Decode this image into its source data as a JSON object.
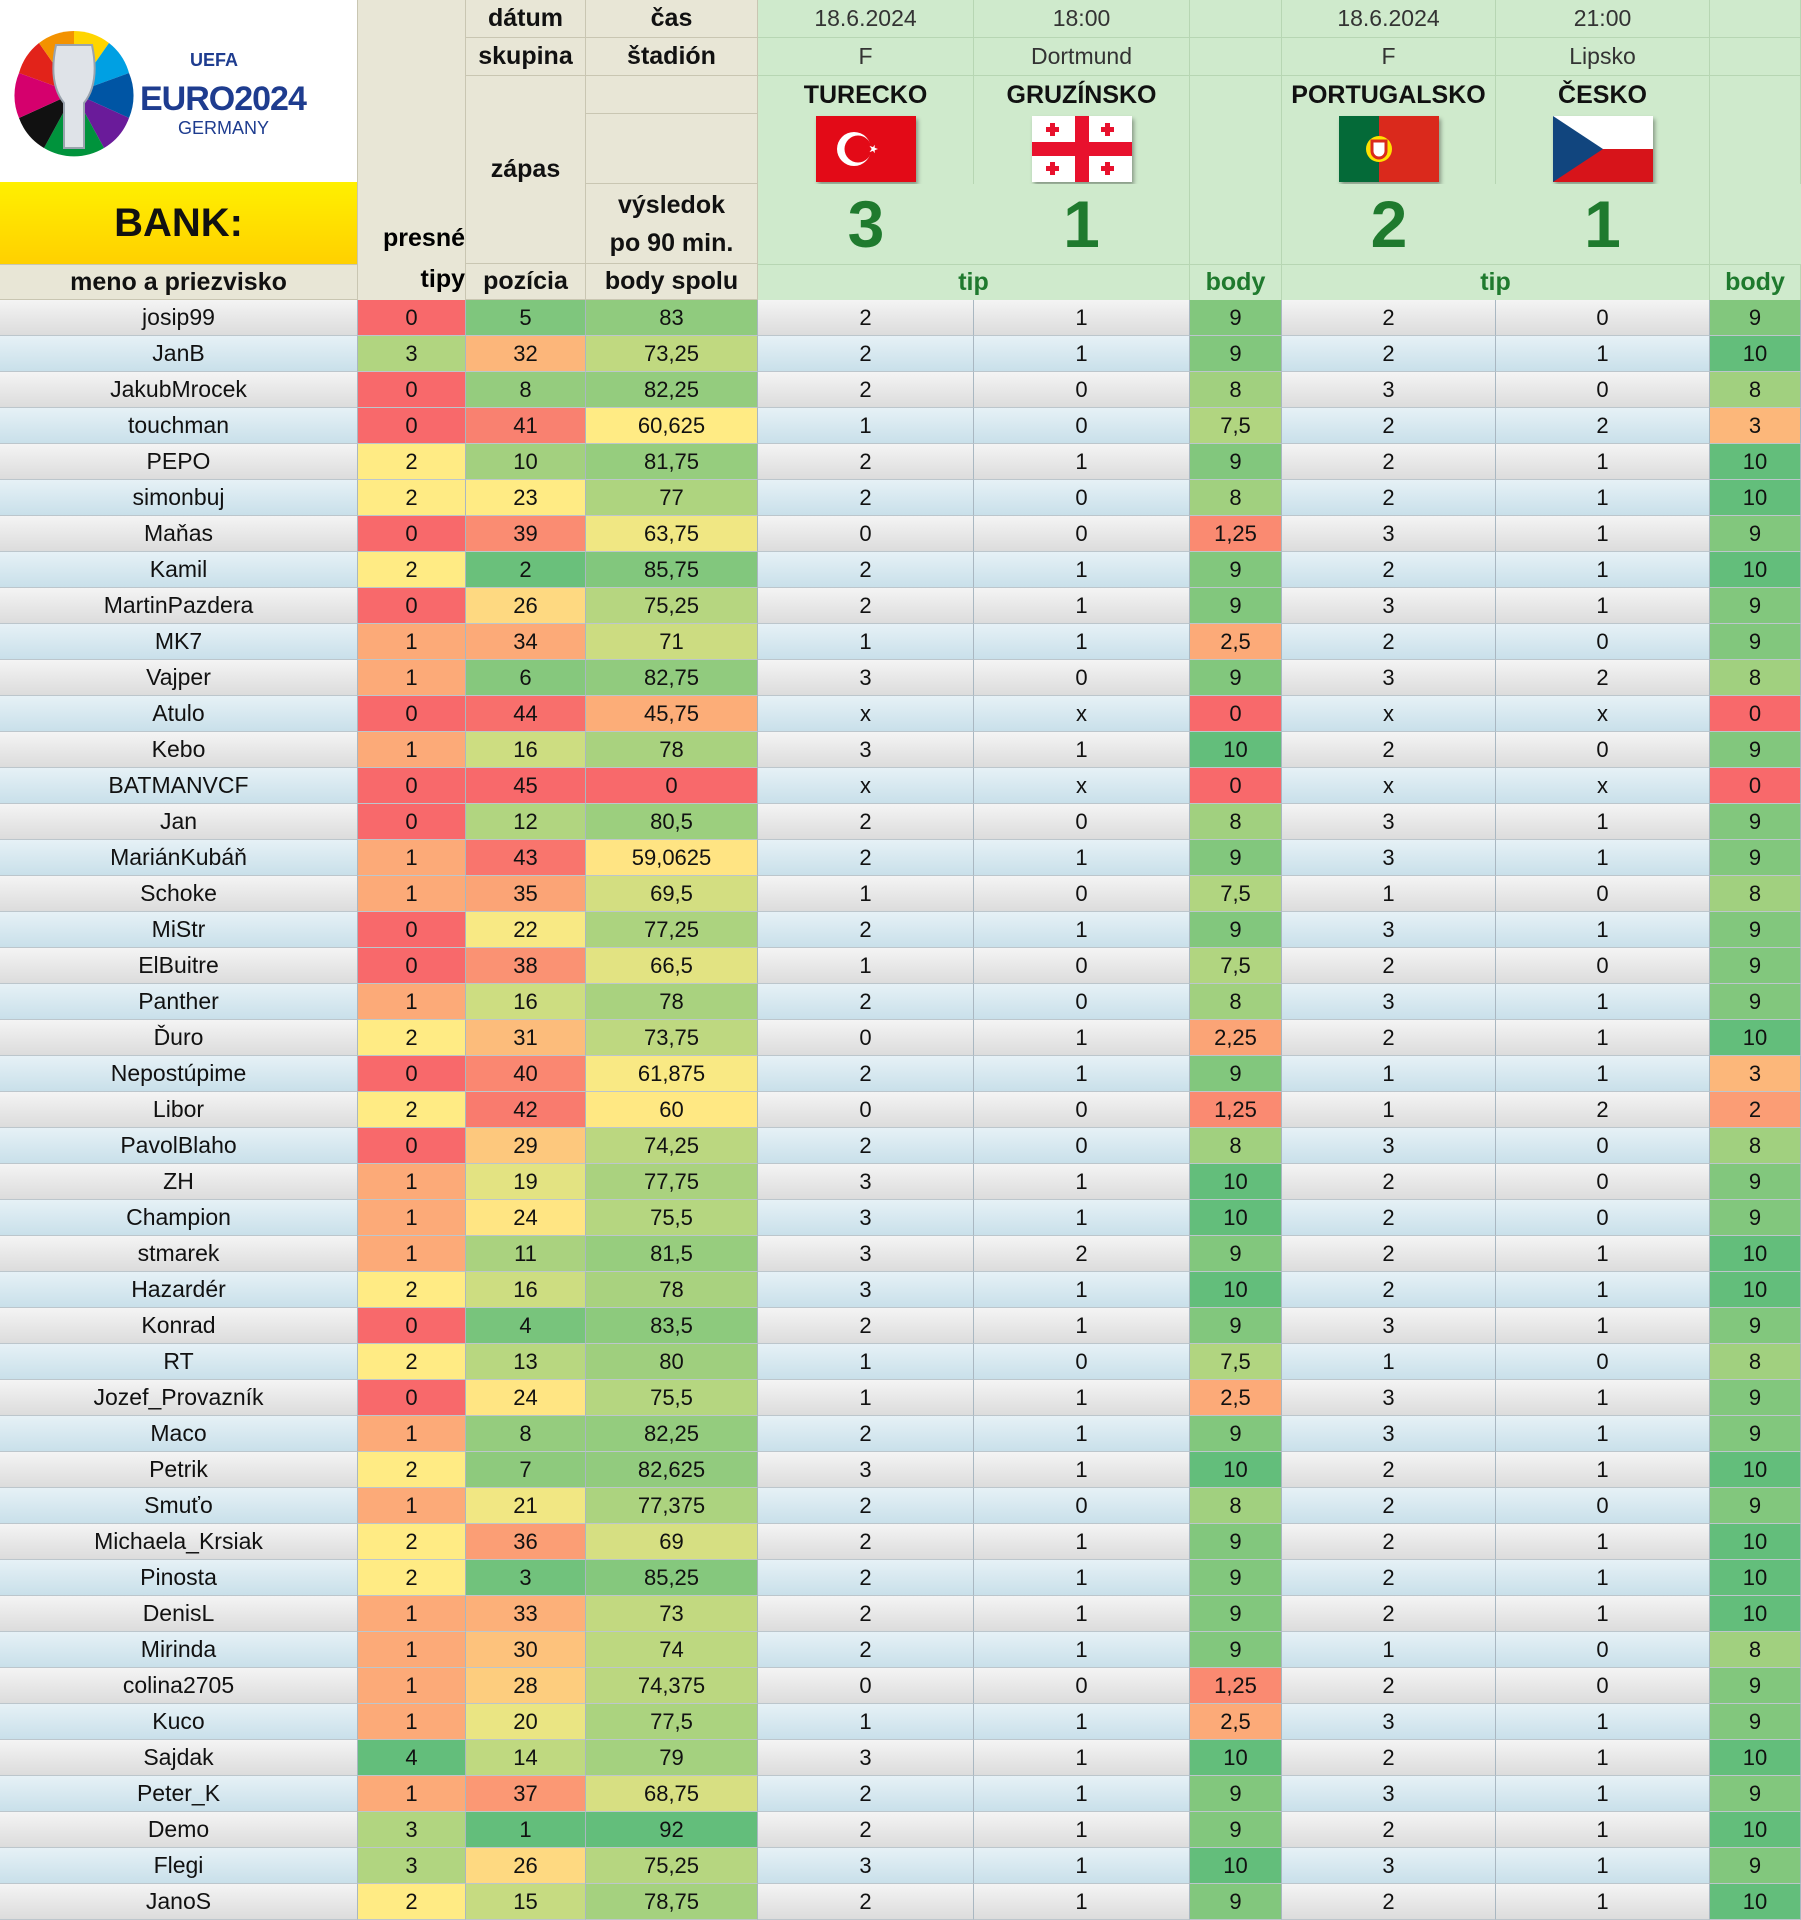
{
  "header": {
    "logo": {
      "top": "UEFA",
      "main": "EURO2024",
      "sub": "GERMANY"
    },
    "bank_label": "BANK:",
    "labels": {
      "datum": "dátum",
      "cas": "čas",
      "skupina": "skupina",
      "stadion": "štadión",
      "zapas": "zápas",
      "vysledok_line1": "výsledok",
      "vysledok_line2": "po 90 min.",
      "presne_line1": "presné",
      "presne_line2": "tipy",
      "meno": "meno a priezvisko",
      "pozicia": "pozícia",
      "body_spolu": "body spolu"
    },
    "matches": [
      {
        "date": "18.6.2024",
        "time": "18:00",
        "group": "F",
        "stadium": "Dortmund",
        "home": "TURECKO",
        "away": "GRUZÍNSKO",
        "home_flag": "turkey-flag-icon",
        "away_flag": "georgia-flag-icon",
        "home_score": "3",
        "away_score": "1",
        "tip_label": "tip",
        "body_label": "body"
      },
      {
        "date": "18.6.2024",
        "time": "21:00",
        "group": "F",
        "stadium": "Lipsko",
        "home": "PORTUGALSKO",
        "away": "ČESKO",
        "home_flag": "portugal-flag-icon",
        "away_flag": "czechia-flag-icon",
        "home_score": "2",
        "away_score": "1",
        "tip_label": "tip",
        "body_label": "body"
      }
    ]
  },
  "colors": {
    "bank_yellow": "#ffe600",
    "score_green": "#1f7a2e",
    "scale_red": "#f8696b",
    "scale_yellow": "#ffeb84",
    "scale_green": "#63be7b"
  },
  "rows": [
    {
      "name": "josip99",
      "presne": "0",
      "pozicia": "5",
      "body_spolu": "83",
      "m1_tip_home": "2",
      "m1_tip_away": "1",
      "m1_body": "9",
      "m2_tip_home": "2",
      "m2_tip_away": "0",
      "m2_body": "9"
    },
    {
      "name": "JanB",
      "presne": "3",
      "pozicia": "32",
      "body_spolu": "73,25",
      "m1_tip_home": "2",
      "m1_tip_away": "1",
      "m1_body": "9",
      "m2_tip_home": "2",
      "m2_tip_away": "1",
      "m2_body": "10"
    },
    {
      "name": "JakubMrocek",
      "presne": "0",
      "pozicia": "8",
      "body_spolu": "82,25",
      "m1_tip_home": "2",
      "m1_tip_away": "0",
      "m1_body": "8",
      "m2_tip_home": "3",
      "m2_tip_away": "0",
      "m2_body": "8"
    },
    {
      "name": "touchman",
      "presne": "0",
      "pozicia": "41",
      "body_spolu": "60,625",
      "m1_tip_home": "1",
      "m1_tip_away": "0",
      "m1_body": "7,5",
      "m2_tip_home": "2",
      "m2_tip_away": "2",
      "m2_body": "3"
    },
    {
      "name": "PEPO",
      "presne": "2",
      "pozicia": "10",
      "body_spolu": "81,75",
      "m1_tip_home": "2",
      "m1_tip_away": "1",
      "m1_body": "9",
      "m2_tip_home": "2",
      "m2_tip_away": "1",
      "m2_body": "10"
    },
    {
      "name": "simonbuj",
      "presne": "2",
      "pozicia": "23",
      "body_spolu": "77",
      "m1_tip_home": "2",
      "m1_tip_away": "0",
      "m1_body": "8",
      "m2_tip_home": "2",
      "m2_tip_away": "1",
      "m2_body": "10"
    },
    {
      "name": "Maňas",
      "presne": "0",
      "pozicia": "39",
      "body_spolu": "63,75",
      "m1_tip_home": "0",
      "m1_tip_away": "0",
      "m1_body": "1,25",
      "m2_tip_home": "3",
      "m2_tip_away": "1",
      "m2_body": "9"
    },
    {
      "name": "Kamil",
      "presne": "2",
      "pozicia": "2",
      "body_spolu": "85,75",
      "m1_tip_home": "2",
      "m1_tip_away": "1",
      "m1_body": "9",
      "m2_tip_home": "2",
      "m2_tip_away": "1",
      "m2_body": "10"
    },
    {
      "name": "MartinPazdera",
      "presne": "0",
      "pozicia": "26",
      "body_spolu": "75,25",
      "m1_tip_home": "2",
      "m1_tip_away": "1",
      "m1_body": "9",
      "m2_tip_home": "3",
      "m2_tip_away": "1",
      "m2_body": "9"
    },
    {
      "name": "MK7",
      "presne": "1",
      "pozicia": "34",
      "body_spolu": "71",
      "m1_tip_home": "1",
      "m1_tip_away": "1",
      "m1_body": "2,5",
      "m2_tip_home": "2",
      "m2_tip_away": "0",
      "m2_body": "9"
    },
    {
      "name": "Vajper",
      "presne": "1",
      "pozicia": "6",
      "body_spolu": "82,75",
      "m1_tip_home": "3",
      "m1_tip_away": "0",
      "m1_body": "9",
      "m2_tip_home": "3",
      "m2_tip_away": "2",
      "m2_body": "8"
    },
    {
      "name": "Atulo",
      "presne": "0",
      "pozicia": "44",
      "body_spolu": "45,75",
      "m1_tip_home": "x",
      "m1_tip_away": "x",
      "m1_body": "0",
      "m2_tip_home": "x",
      "m2_tip_away": "x",
      "m2_body": "0"
    },
    {
      "name": "Kebo",
      "presne": "1",
      "pozicia": "16",
      "body_spolu": "78",
      "m1_tip_home": "3",
      "m1_tip_away": "1",
      "m1_body": "10",
      "m2_tip_home": "2",
      "m2_tip_away": "0",
      "m2_body": "9"
    },
    {
      "name": "BATMANVCF",
      "presne": "0",
      "pozicia": "45",
      "body_spolu": "0",
      "m1_tip_home": "x",
      "m1_tip_away": "x",
      "m1_body": "0",
      "m2_tip_home": "x",
      "m2_tip_away": "x",
      "m2_body": "0"
    },
    {
      "name": "Jan",
      "presne": "0",
      "pozicia": "12",
      "body_spolu": "80,5",
      "m1_tip_home": "2",
      "m1_tip_away": "0",
      "m1_body": "8",
      "m2_tip_home": "3",
      "m2_tip_away": "1",
      "m2_body": "9"
    },
    {
      "name": "MariánKubáň",
      "presne": "1",
      "pozicia": "43",
      "body_spolu": "59,0625",
      "m1_tip_home": "2",
      "m1_tip_away": "1",
      "m1_body": "9",
      "m2_tip_home": "3",
      "m2_tip_away": "1",
      "m2_body": "9"
    },
    {
      "name": "Schoke",
      "presne": "1",
      "pozicia": "35",
      "body_spolu": "69,5",
      "m1_tip_home": "1",
      "m1_tip_away": "0",
      "m1_body": "7,5",
      "m2_tip_home": "1",
      "m2_tip_away": "0",
      "m2_body": "8"
    },
    {
      "name": "MiStr",
      "presne": "0",
      "pozicia": "22",
      "body_spolu": "77,25",
      "m1_tip_home": "2",
      "m1_tip_away": "1",
      "m1_body": "9",
      "m2_tip_home": "3",
      "m2_tip_away": "1",
      "m2_body": "9"
    },
    {
      "name": "ElBuitre",
      "presne": "0",
      "pozicia": "38",
      "body_spolu": "66,5",
      "m1_tip_home": "1",
      "m1_tip_away": "0",
      "m1_body": "7,5",
      "m2_tip_home": "2",
      "m2_tip_away": "0",
      "m2_body": "9"
    },
    {
      "name": "Panther",
      "presne": "1",
      "pozicia": "16",
      "body_spolu": "78",
      "m1_tip_home": "2",
      "m1_tip_away": "0",
      "m1_body": "8",
      "m2_tip_home": "3",
      "m2_tip_away": "1",
      "m2_body": "9"
    },
    {
      "name": "Ďuro",
      "presne": "2",
      "pozicia": "31",
      "body_spolu": "73,75",
      "m1_tip_home": "0",
      "m1_tip_away": "1",
      "m1_body": "2,25",
      "m2_tip_home": "2",
      "m2_tip_away": "1",
      "m2_body": "10"
    },
    {
      "name": "Nepostúpime",
      "presne": "0",
      "pozicia": "40",
      "body_spolu": "61,875",
      "m1_tip_home": "2",
      "m1_tip_away": "1",
      "m1_body": "9",
      "m2_tip_home": "1",
      "m2_tip_away": "1",
      "m2_body": "3"
    },
    {
      "name": "Libor",
      "presne": "2",
      "pozicia": "42",
      "body_spolu": "60",
      "m1_tip_home": "0",
      "m1_tip_away": "0",
      "m1_body": "1,25",
      "m2_tip_home": "1",
      "m2_tip_away": "2",
      "m2_body": "2"
    },
    {
      "name": "PavolBlaho",
      "presne": "0",
      "pozicia": "29",
      "body_spolu": "74,25",
      "m1_tip_home": "2",
      "m1_tip_away": "0",
      "m1_body": "8",
      "m2_tip_home": "3",
      "m2_tip_away": "0",
      "m2_body": "8"
    },
    {
      "name": "ZH",
      "presne": "1",
      "pozicia": "19",
      "body_spolu": "77,75",
      "m1_tip_home": "3",
      "m1_tip_away": "1",
      "m1_body": "10",
      "m2_tip_home": "2",
      "m2_tip_away": "0",
      "m2_body": "9"
    },
    {
      "name": "Champion",
      "presne": "1",
      "pozicia": "24",
      "body_spolu": "75,5",
      "m1_tip_home": "3",
      "m1_tip_away": "1",
      "m1_body": "10",
      "m2_tip_home": "2",
      "m2_tip_away": "0",
      "m2_body": "9"
    },
    {
      "name": "stmarek",
      "presne": "1",
      "pozicia": "11",
      "body_spolu": "81,5",
      "m1_tip_home": "3",
      "m1_tip_away": "2",
      "m1_body": "9",
      "m2_tip_home": "2",
      "m2_tip_away": "1",
      "m2_body": "10"
    },
    {
      "name": "Hazardér",
      "presne": "2",
      "pozicia": "16",
      "body_spolu": "78",
      "m1_tip_home": "3",
      "m1_tip_away": "1",
      "m1_body": "10",
      "m2_tip_home": "2",
      "m2_tip_away": "1",
      "m2_body": "10"
    },
    {
      "name": "Konrad",
      "presne": "0",
      "pozicia": "4",
      "body_spolu": "83,5",
      "m1_tip_home": "2",
      "m1_tip_away": "1",
      "m1_body": "9",
      "m2_tip_home": "3",
      "m2_tip_away": "1",
      "m2_body": "9"
    },
    {
      "name": "RT",
      "presne": "2",
      "pozicia": "13",
      "body_spolu": "80",
      "m1_tip_home": "1",
      "m1_tip_away": "0",
      "m1_body": "7,5",
      "m2_tip_home": "1",
      "m2_tip_away": "0",
      "m2_body": "8"
    },
    {
      "name": "Jozef_Provazník",
      "presne": "0",
      "pozicia": "24",
      "body_spolu": "75,5",
      "m1_tip_home": "1",
      "m1_tip_away": "1",
      "m1_body": "2,5",
      "m2_tip_home": "3",
      "m2_tip_away": "1",
      "m2_body": "9"
    },
    {
      "name": "Maco",
      "presne": "1",
      "pozicia": "8",
      "body_spolu": "82,25",
      "m1_tip_home": "2",
      "m1_tip_away": "1",
      "m1_body": "9",
      "m2_tip_home": "3",
      "m2_tip_away": "1",
      "m2_body": "9"
    },
    {
      "name": "Petrik",
      "presne": "2",
      "pozicia": "7",
      "body_spolu": "82,625",
      "m1_tip_home": "3",
      "m1_tip_away": "1",
      "m1_body": "10",
      "m2_tip_home": "2",
      "m2_tip_away": "1",
      "m2_body": "10"
    },
    {
      "name": "Smuťo",
      "presne": "1",
      "pozicia": "21",
      "body_spolu": "77,375",
      "m1_tip_home": "2",
      "m1_tip_away": "0",
      "m1_body": "8",
      "m2_tip_home": "2",
      "m2_tip_away": "0",
      "m2_body": "9"
    },
    {
      "name": "Michaela_Krsiak",
      "presne": "2",
      "pozicia": "36",
      "body_spolu": "69",
      "m1_tip_home": "2",
      "m1_tip_away": "1",
      "m1_body": "9",
      "m2_tip_home": "2",
      "m2_tip_away": "1",
      "m2_body": "10"
    },
    {
      "name": "Pinosta",
      "presne": "2",
      "pozicia": "3",
      "body_spolu": "85,25",
      "m1_tip_home": "2",
      "m1_tip_away": "1",
      "m1_body": "9",
      "m2_tip_home": "2",
      "m2_tip_away": "1",
      "m2_body": "10"
    },
    {
      "name": "DenisL",
      "presne": "1",
      "pozicia": "33",
      "body_spolu": "73",
      "m1_tip_home": "2",
      "m1_tip_away": "1",
      "m1_body": "9",
      "m2_tip_home": "2",
      "m2_tip_away": "1",
      "m2_body": "10"
    },
    {
      "name": "Mirinda",
      "presne": "1",
      "pozicia": "30",
      "body_spolu": "74",
      "m1_tip_home": "2",
      "m1_tip_away": "1",
      "m1_body": "9",
      "m2_tip_home": "1",
      "m2_tip_away": "0",
      "m2_body": "8"
    },
    {
      "name": "colina2705",
      "presne": "1",
      "pozicia": "28",
      "body_spolu": "74,375",
      "m1_tip_home": "0",
      "m1_tip_away": "0",
      "m1_body": "1,25",
      "m2_tip_home": "2",
      "m2_tip_away": "0",
      "m2_body": "9"
    },
    {
      "name": "Kuco",
      "presne": "1",
      "pozicia": "20",
      "body_spolu": "77,5",
      "m1_tip_home": "1",
      "m1_tip_away": "1",
      "m1_body": "2,5",
      "m2_tip_home": "3",
      "m2_tip_away": "1",
      "m2_body": "9"
    },
    {
      "name": "Sajdak",
      "presne": "4",
      "pozicia": "14",
      "body_spolu": "79",
      "m1_tip_home": "3",
      "m1_tip_away": "1",
      "m1_body": "10",
      "m2_tip_home": "2",
      "m2_tip_away": "1",
      "m2_body": "10"
    },
    {
      "name": "Peter_K",
      "presne": "1",
      "pozicia": "37",
      "body_spolu": "68,75",
      "m1_tip_home": "2",
      "m1_tip_away": "1",
      "m1_body": "9",
      "m2_tip_home": "3",
      "m2_tip_away": "1",
      "m2_body": "9"
    },
    {
      "name": "Demo",
      "presne": "3",
      "pozicia": "1",
      "body_spolu": "92",
      "m1_tip_home": "2",
      "m1_tip_away": "1",
      "m1_body": "9",
      "m2_tip_home": "2",
      "m2_tip_away": "1",
      "m2_body": "10"
    },
    {
      "name": "Flegi",
      "presne": "3",
      "pozicia": "26",
      "body_spolu": "75,25",
      "m1_tip_home": "3",
      "m1_tip_away": "1",
      "m1_body": "10",
      "m2_tip_home": "3",
      "m2_tip_away": "1",
      "m2_body": "9"
    },
    {
      "name": "JanoS",
      "presne": "2",
      "pozicia": "15",
      "body_spolu": "78,75",
      "m1_tip_home": "2",
      "m1_tip_away": "1",
      "m1_body": "9",
      "m2_tip_home": "2",
      "m2_tip_away": "1",
      "m2_body": "10"
    }
  ]
}
